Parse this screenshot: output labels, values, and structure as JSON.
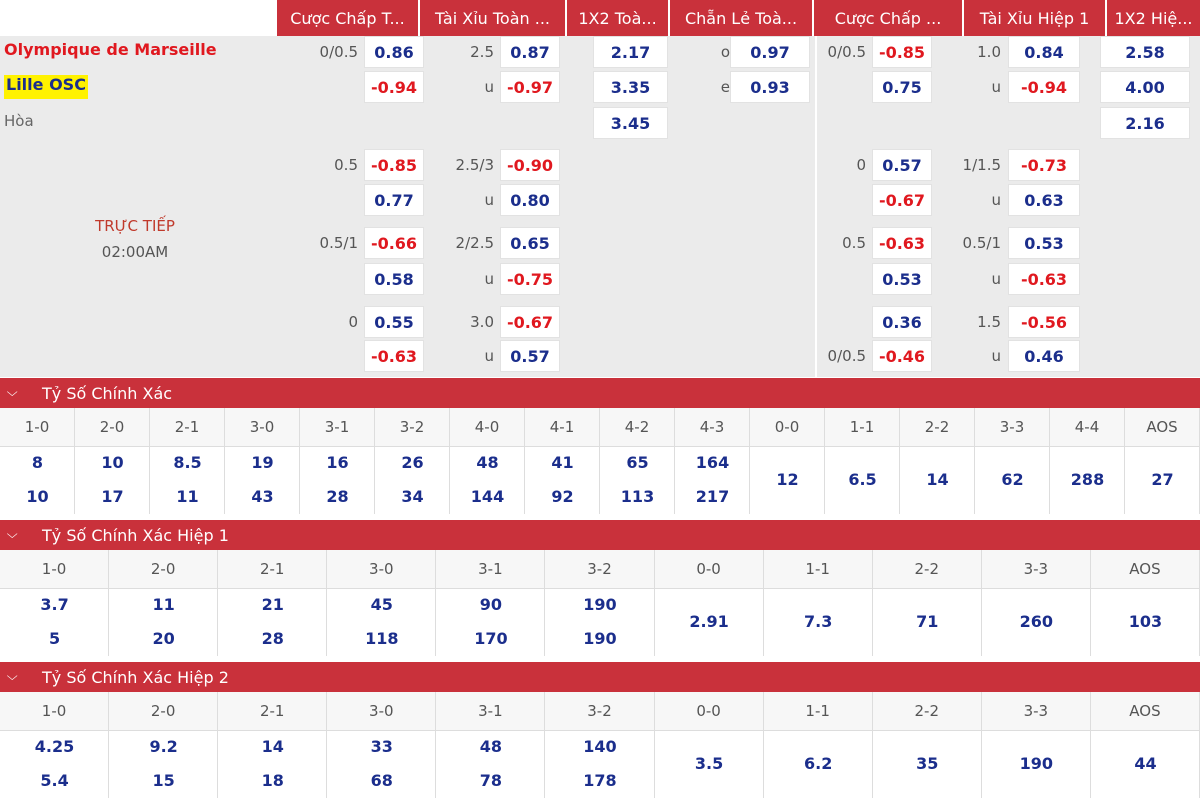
{
  "odds": {
    "headers": [
      "Cược Chấp T...",
      "Tài Xỉu Toàn ...",
      "1X2 Toà...",
      "Chẵn Lẻ Toà...",
      "Cược Chấp ...",
      "Tài Xỉu Hiệp 1",
      "1X2 Hiệ..."
    ],
    "home": "Olympique de Marseille",
    "away": "Lille OSC",
    "draw": "Hòa",
    "status": "TRỰC TIẾP",
    "time": "02:00AM",
    "rows": [
      [
        "0/0.5",
        "0.86",
        "2.5",
        "0.87",
        "2.17",
        "o",
        "0.97",
        "0/0.5",
        "-0.85",
        "1.0",
        "0.84",
        "2.58"
      ],
      [
        null,
        "-0.94",
        "u",
        "-0.97",
        "3.35",
        "e",
        "0.93",
        null,
        "0.75",
        "u",
        "-0.94",
        "4.00"
      ],
      [
        null,
        null,
        null,
        null,
        "3.45",
        null,
        null,
        null,
        null,
        null,
        null,
        "2.16"
      ],
      [
        "0.5",
        "-0.85",
        "2.5/3",
        "-0.90",
        null,
        null,
        null,
        "0",
        "0.57",
        "1/1.5",
        "-0.73",
        null
      ],
      [
        null,
        "0.77",
        "u",
        "0.80",
        null,
        null,
        null,
        null,
        "-0.67",
        "u",
        "0.63",
        null
      ],
      [
        "0.5/1",
        "-0.66",
        "2/2.5",
        "0.65",
        null,
        null,
        null,
        "0.5",
        "-0.63",
        "0.5/1",
        "0.53",
        null
      ],
      [
        null,
        "0.58",
        "u",
        "-0.75",
        null,
        null,
        null,
        null,
        "0.53",
        "u",
        "-0.63",
        null
      ],
      [
        "0",
        "0.55",
        "3.0",
        "-0.67",
        null,
        null,
        null,
        null,
        "0.36",
        "1.5",
        "-0.56",
        null
      ],
      [
        null,
        "-0.63",
        "u",
        "0.57",
        null,
        null,
        null,
        "0/0.5",
        "-0.46",
        "u",
        "0.46",
        null
      ]
    ]
  },
  "sections": [
    {
      "title": "Tỷ Số Chính Xác",
      "columns": [
        {
          "label": "1-0",
          "values": [
            8,
            10
          ]
        },
        {
          "label": "2-0",
          "values": [
            10,
            17
          ]
        },
        {
          "label": "2-1",
          "values": [
            8.5,
            11
          ]
        },
        {
          "label": "3-0",
          "values": [
            19,
            43
          ]
        },
        {
          "label": "3-1",
          "values": [
            16,
            28
          ]
        },
        {
          "label": "3-2",
          "values": [
            26,
            34
          ]
        },
        {
          "label": "4-0",
          "values": [
            48,
            144
          ]
        },
        {
          "label": "4-1",
          "values": [
            41,
            92
          ]
        },
        {
          "label": "4-2",
          "values": [
            65,
            113
          ]
        },
        {
          "label": "4-3",
          "values": [
            164,
            217
          ]
        },
        {
          "label": "0-0",
          "values": [
            12
          ]
        },
        {
          "label": "1-1",
          "values": [
            6.5
          ]
        },
        {
          "label": "2-2",
          "values": [
            14
          ]
        },
        {
          "label": "3-3",
          "values": [
            62
          ]
        },
        {
          "label": "4-4",
          "values": [
            288
          ]
        },
        {
          "label": "AOS",
          "values": [
            27
          ]
        }
      ]
    },
    {
      "title": "Tỷ Số Chính Xác Hiệp 1",
      "columns": [
        {
          "label": "1-0",
          "values": [
            3.7,
            5
          ]
        },
        {
          "label": "2-0",
          "values": [
            11,
            20
          ]
        },
        {
          "label": "2-1",
          "values": [
            21,
            28
          ]
        },
        {
          "label": "3-0",
          "values": [
            45,
            118
          ]
        },
        {
          "label": "3-1",
          "values": [
            90,
            170
          ]
        },
        {
          "label": "3-2",
          "values": [
            190,
            190
          ]
        },
        {
          "label": "0-0",
          "values": [
            2.91
          ]
        },
        {
          "label": "1-1",
          "values": [
            7.3
          ]
        },
        {
          "label": "2-2",
          "values": [
            71
          ]
        },
        {
          "label": "3-3",
          "values": [
            260
          ]
        },
        {
          "label": "AOS",
          "values": [
            103
          ]
        }
      ]
    },
    {
      "title": "Tỷ Số Chính Xác Hiệp 2",
      "columns": [
        {
          "label": "1-0",
          "values": [
            4.25,
            5.4
          ]
        },
        {
          "label": "2-0",
          "values": [
            9.2,
            15
          ]
        },
        {
          "label": "2-1",
          "values": [
            14,
            18
          ]
        },
        {
          "label": "3-0",
          "values": [
            33,
            68
          ]
        },
        {
          "label": "3-1",
          "values": [
            48,
            78
          ]
        },
        {
          "label": "3-2",
          "values": [
            140,
            178
          ]
        },
        {
          "label": "0-0",
          "values": [
            3.5
          ]
        },
        {
          "label": "1-1",
          "values": [
            6.2
          ]
        },
        {
          "label": "2-2",
          "values": [
            35
          ]
        },
        {
          "label": "3-3",
          "values": [
            190
          ]
        },
        {
          "label": "AOS",
          "values": [
            44
          ]
        }
      ]
    }
  ]
}
